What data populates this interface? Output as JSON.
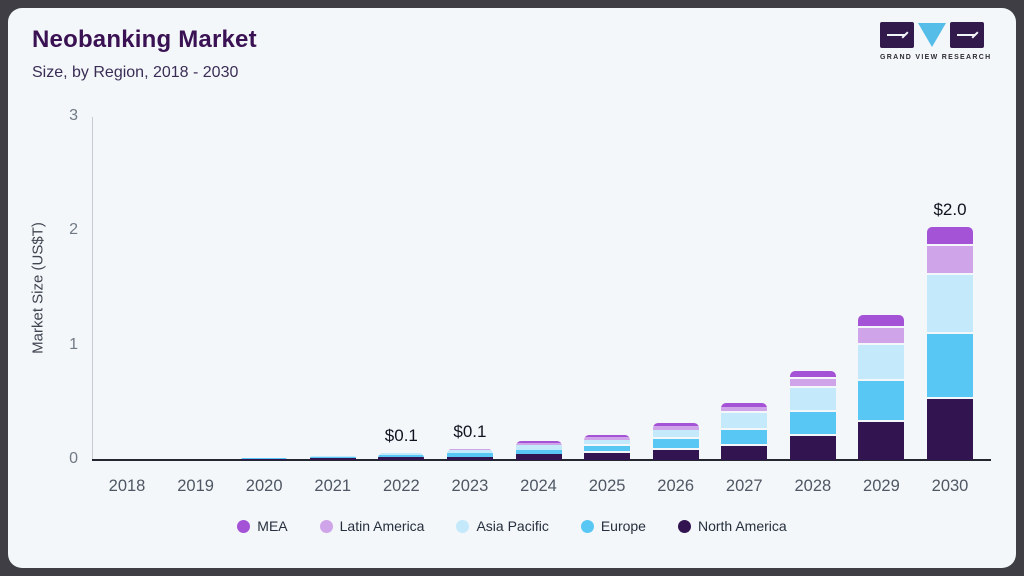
{
  "header": {
    "title": "Neobanking Market",
    "subtitle": "Size, by Region, 2018 - 2030"
  },
  "logo": {
    "name": "grand-view-research-logo",
    "caption": "GRAND VIEW RESEARCH"
  },
  "chart_data": {
    "type": "bar",
    "stacked": true,
    "title": "Neobanking Market Size, by Region, 2018 - 2030",
    "xlabel": "",
    "ylabel": "Market Size (US$T)",
    "ylim": [
      0,
      3
    ],
    "yticks": [
      0,
      1,
      2,
      3
    ],
    "grid": false,
    "legend_position": "bottom",
    "categories": [
      "2018",
      "2019",
      "2020",
      "2021",
      "2022",
      "2023",
      "2024",
      "2025",
      "2026",
      "2027",
      "2028",
      "2029",
      "2030"
    ],
    "series": [
      {
        "name": "North America",
        "color": "#321450",
        "values": [
          0.002,
          0.003,
          0.01,
          0.015,
          0.025,
          0.03,
          0.05,
          0.065,
          0.09,
          0.12,
          0.21,
          0.33,
          0.53
        ]
      },
      {
        "name": "Europe",
        "color": "#58c7f3",
        "values": [
          0.002,
          0.003,
          0.006,
          0.01,
          0.02,
          0.03,
          0.04,
          0.055,
          0.09,
          0.145,
          0.21,
          0.36,
          0.57
        ]
      },
      {
        "name": "Asia Pacific",
        "color": "#c4e9fb",
        "values": [
          0.001,
          0.002,
          0.003,
          0.007,
          0.013,
          0.025,
          0.04,
          0.055,
          0.08,
          0.145,
          0.21,
          0.32,
          0.52
        ]
      },
      {
        "name": "Latin America",
        "color": "#cfa4e8",
        "values": [
          0.0,
          0.0,
          0.001,
          0.002,
          0.004,
          0.01,
          0.02,
          0.025,
          0.035,
          0.05,
          0.08,
          0.145,
          0.25
        ]
      },
      {
        "name": "MEA",
        "color": "#a453d6",
        "values": [
          0.0,
          0.0,
          0.001,
          0.001,
          0.003,
          0.005,
          0.015,
          0.02,
          0.025,
          0.04,
          0.07,
          0.115,
          0.17
        ]
      }
    ],
    "total_labels": {
      "2022": "$0.1",
      "2023": "$0.1",
      "2030": "$2.0"
    },
    "legend_order": [
      "MEA",
      "Latin America",
      "Asia Pacific",
      "Europe",
      "North America"
    ]
  }
}
